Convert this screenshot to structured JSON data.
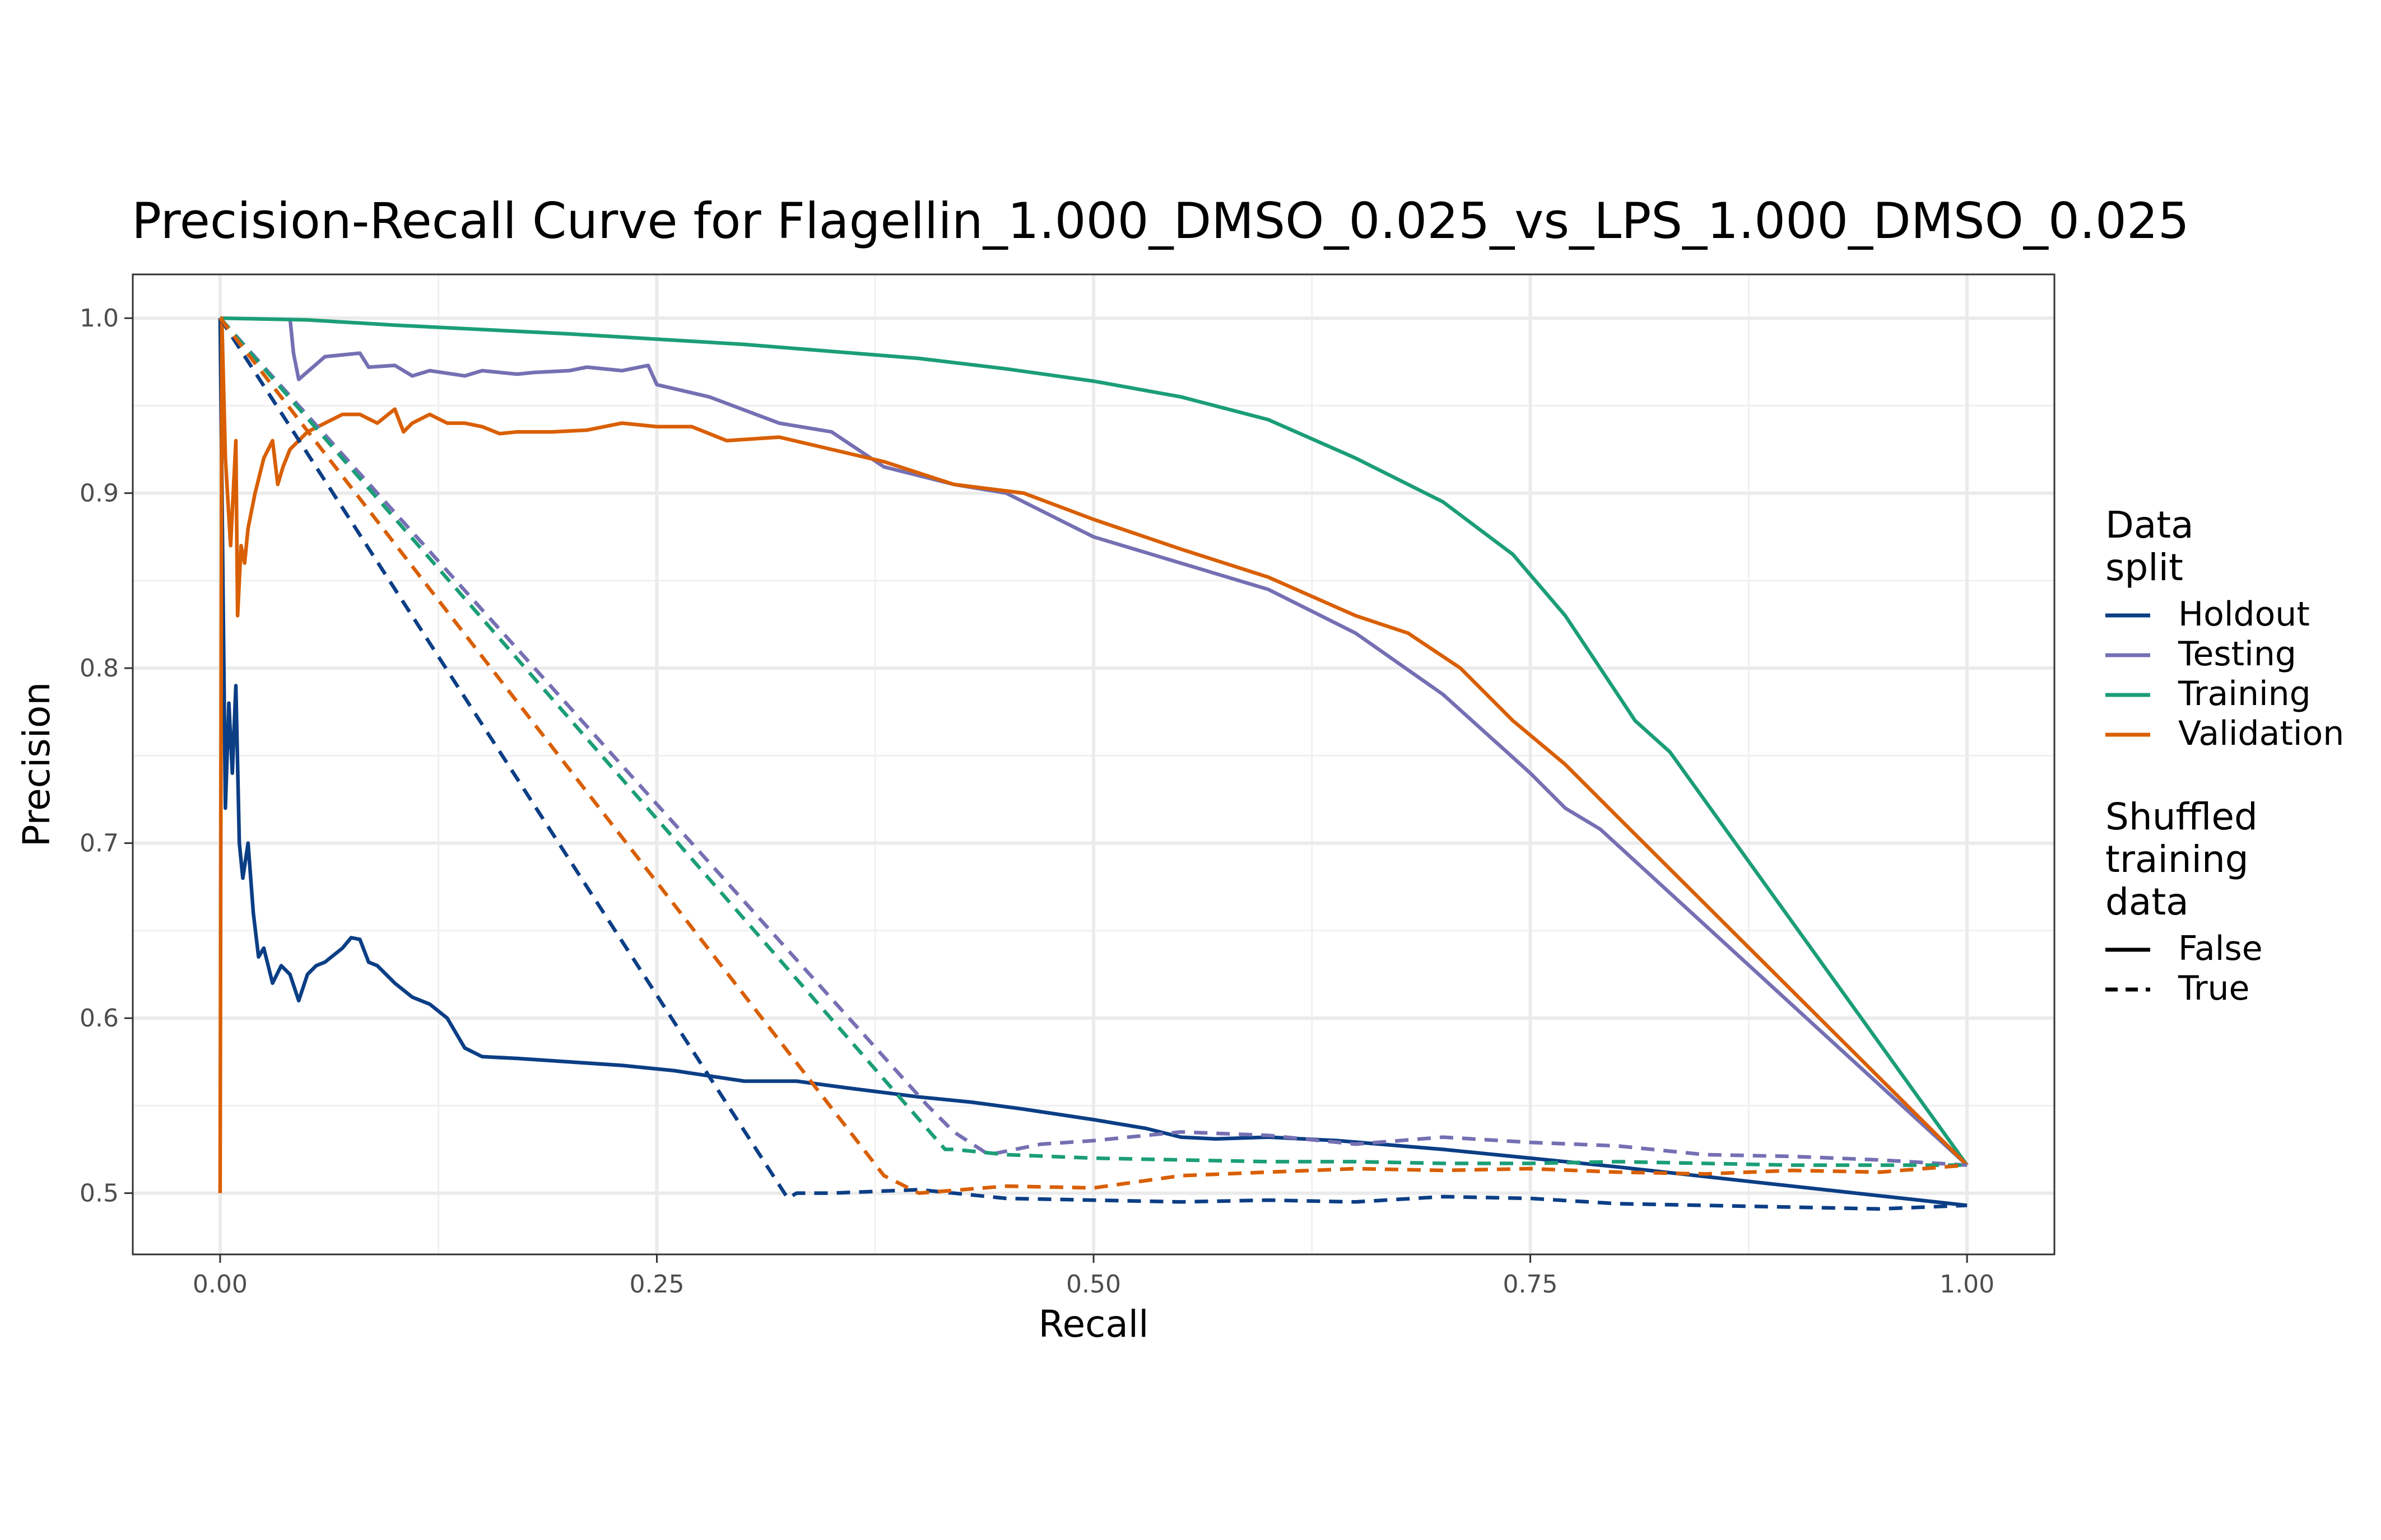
{
  "chart_data": {
    "type": "line",
    "title": "Precision-Recall Curve for Flagellin_1.000_DMSO_0.025_vs_LPS_1.000_DMSO_0.025",
    "xlabel": "Recall",
    "ylabel": "Precision",
    "xlim": [
      -0.05,
      1.05
    ],
    "ylim": [
      0.465,
      1.025
    ],
    "x_ticks": [
      0,
      0.25,
      0.5,
      0.75,
      1
    ],
    "x_tick_labels": [
      "0.00",
      "0.25",
      "0.50",
      "0.75",
      "1.00"
    ],
    "y_ticks": [
      0.5,
      0.6,
      0.7,
      0.8,
      0.9,
      1.0
    ],
    "y_tick_labels": [
      "0.5",
      "0.6",
      "0.7",
      "0.8",
      "0.9",
      "1.0"
    ],
    "grid": true,
    "legend_position": "right",
    "legends": [
      {
        "title": "Data split",
        "title_lines": [
          "Data",
          "split"
        ],
        "items": [
          {
            "label": "Holdout",
            "color": "#0b3e85"
          },
          {
            "label": "Testing",
            "color": "#7570b3"
          },
          {
            "label": "Training",
            "color": "#1b9e77"
          },
          {
            "label": "Validation",
            "color": "#d95f02"
          }
        ]
      },
      {
        "title": "Shuffled training data",
        "title_lines": [
          "Shuffled",
          "training",
          "data"
        ],
        "items": [
          {
            "label": "False",
            "linetype": "solid"
          },
          {
            "label": "True",
            "linetype": "dashed"
          }
        ]
      }
    ],
    "series": [
      {
        "name": "Holdout",
        "shuffled": "False",
        "color": "#0b3e85",
        "dash": false,
        "x": [
          0.0,
          0.003,
          0.005,
          0.007,
          0.009,
          0.011,
          0.013,
          0.016,
          0.019,
          0.022,
          0.025,
          0.03,
          0.035,
          0.04,
          0.045,
          0.05,
          0.055,
          0.06,
          0.065,
          0.07,
          0.075,
          0.08,
          0.085,
          0.09,
          0.1,
          0.11,
          0.12,
          0.13,
          0.14,
          0.15,
          0.17,
          0.2,
          0.23,
          0.26,
          0.28,
          0.3,
          0.33,
          0.36,
          0.4,
          0.43,
          0.46,
          0.5,
          0.53,
          0.55,
          0.57,
          0.6,
          0.64,
          0.7,
          0.8,
          1.0
        ],
        "y": [
          1.0,
          0.72,
          0.78,
          0.74,
          0.79,
          0.7,
          0.68,
          0.7,
          0.66,
          0.635,
          0.64,
          0.62,
          0.63,
          0.625,
          0.61,
          0.625,
          0.63,
          0.632,
          0.636,
          0.64,
          0.646,
          0.645,
          0.632,
          0.63,
          0.62,
          0.612,
          0.608,
          0.6,
          0.583,
          0.578,
          0.577,
          0.575,
          0.573,
          0.57,
          0.567,
          0.564,
          0.564,
          0.56,
          0.555,
          0.552,
          0.548,
          0.542,
          0.537,
          0.532,
          0.531,
          0.532,
          0.53,
          0.525,
          0.515,
          0.493
        ]
      },
      {
        "name": "Testing",
        "shuffled": "False",
        "color": "#7570b3",
        "dash": false,
        "x": [
          0.04,
          0.042,
          0.045,
          0.06,
          0.08,
          0.085,
          0.1,
          0.11,
          0.12,
          0.14,
          0.15,
          0.17,
          0.18,
          0.2,
          0.21,
          0.23,
          0.245,
          0.25,
          0.28,
          0.32,
          0.35,
          0.38,
          0.42,
          0.45,
          0.48,
          0.5,
          0.55,
          0.6,
          0.65,
          0.7,
          0.75,
          0.77,
          0.79,
          1.0
        ],
        "y": [
          1.0,
          0.98,
          0.965,
          0.978,
          0.98,
          0.972,
          0.973,
          0.967,
          0.97,
          0.967,
          0.97,
          0.968,
          0.969,
          0.97,
          0.972,
          0.97,
          0.973,
          0.962,
          0.955,
          0.94,
          0.935,
          0.915,
          0.905,
          0.9,
          0.885,
          0.875,
          0.86,
          0.845,
          0.82,
          0.785,
          0.74,
          0.72,
          0.708,
          0.516
        ]
      },
      {
        "name": "Training",
        "shuffled": "False",
        "color": "#1b9e77",
        "dash": false,
        "x": [
          0.0,
          0.05,
          0.1,
          0.2,
          0.3,
          0.4,
          0.45,
          0.5,
          0.55,
          0.6,
          0.65,
          0.7,
          0.74,
          0.77,
          0.79,
          0.81,
          0.83,
          1.0
        ],
        "y": [
          1.0,
          0.999,
          0.996,
          0.991,
          0.985,
          0.977,
          0.971,
          0.964,
          0.955,
          0.942,
          0.92,
          0.895,
          0.865,
          0.83,
          0.8,
          0.77,
          0.752,
          0.516
        ]
      },
      {
        "name": "Validation",
        "shuffled": "False",
        "color": "#d95f02",
        "dash": false,
        "x": [
          0.0,
          0.001,
          0.003,
          0.006,
          0.009,
          0.01,
          0.012,
          0.014,
          0.016,
          0.02,
          0.025,
          0.03,
          0.033,
          0.036,
          0.04,
          0.045,
          0.05,
          0.06,
          0.07,
          0.08,
          0.09,
          0.1,
          0.105,
          0.11,
          0.12,
          0.13,
          0.14,
          0.15,
          0.16,
          0.17,
          0.19,
          0.21,
          0.23,
          0.25,
          0.27,
          0.29,
          0.32,
          0.35,
          0.38,
          0.42,
          0.46,
          0.5,
          0.55,
          0.6,
          0.65,
          0.68,
          0.71,
          0.74,
          0.77,
          0.8,
          1.0
        ],
        "y": [
          0.5,
          1.0,
          0.92,
          0.87,
          0.93,
          0.83,
          0.87,
          0.86,
          0.88,
          0.9,
          0.92,
          0.93,
          0.905,
          0.915,
          0.925,
          0.93,
          0.935,
          0.94,
          0.945,
          0.945,
          0.94,
          0.948,
          0.935,
          0.94,
          0.945,
          0.94,
          0.94,
          0.938,
          0.934,
          0.935,
          0.935,
          0.936,
          0.94,
          0.938,
          0.938,
          0.93,
          0.932,
          0.925,
          0.918,
          0.905,
          0.9,
          0.885,
          0.868,
          0.852,
          0.83,
          0.82,
          0.8,
          0.77,
          0.745,
          0.715,
          0.516
        ]
      },
      {
        "name": "Holdout",
        "shuffled": "True",
        "color": "#0b3e85",
        "dash": true,
        "x": [
          0.0,
          0.325,
          0.33,
          0.35,
          0.4,
          0.45,
          0.5,
          0.55,
          0.6,
          0.65,
          0.7,
          0.75,
          0.8,
          0.85,
          0.9,
          0.95,
          1.0
        ],
        "y": [
          1.0,
          0.497,
          0.5,
          0.5,
          0.502,
          0.497,
          0.496,
          0.495,
          0.496,
          0.495,
          0.498,
          0.497,
          0.494,
          0.493,
          0.492,
          0.491,
          0.493
        ]
      },
      {
        "name": "Testing",
        "shuffled": "True",
        "color": "#7570b3",
        "dash": true,
        "x": [
          0.0,
          0.405,
          0.42,
          0.44,
          0.47,
          0.5,
          0.55,
          0.6,
          0.65,
          0.7,
          0.75,
          0.8,
          0.85,
          0.9,
          0.95,
          1.0
        ],
        "y": [
          1.0,
          0.55,
          0.535,
          0.522,
          0.528,
          0.53,
          0.535,
          0.533,
          0.528,
          0.532,
          0.529,
          0.527,
          0.522,
          0.521,
          0.519,
          0.516
        ]
      },
      {
        "name": "Training",
        "shuffled": "True",
        "color": "#1b9e77",
        "dash": true,
        "x": [
          0.0,
          0.415,
          0.42,
          0.45,
          0.5,
          0.55,
          0.6,
          0.65,
          0.7,
          0.75,
          0.8,
          0.85,
          0.9,
          0.95,
          1.0
        ],
        "y": [
          1.0,
          0.525,
          0.525,
          0.522,
          0.52,
          0.519,
          0.518,
          0.518,
          0.517,
          0.517,
          0.518,
          0.517,
          0.516,
          0.516,
          0.516
        ]
      },
      {
        "name": "Validation",
        "shuffled": "True",
        "color": "#d95f02",
        "dash": true,
        "x": [
          0.0,
          0.38,
          0.4,
          0.45,
          0.5,
          0.55,
          0.6,
          0.65,
          0.7,
          0.75,
          0.8,
          0.85,
          0.9,
          0.95,
          1.0
        ],
        "y": [
          1.0,
          0.51,
          0.5,
          0.504,
          0.503,
          0.51,
          0.512,
          0.514,
          0.513,
          0.514,
          0.512,
          0.511,
          0.513,
          0.512,
          0.516
        ]
      }
    ]
  }
}
